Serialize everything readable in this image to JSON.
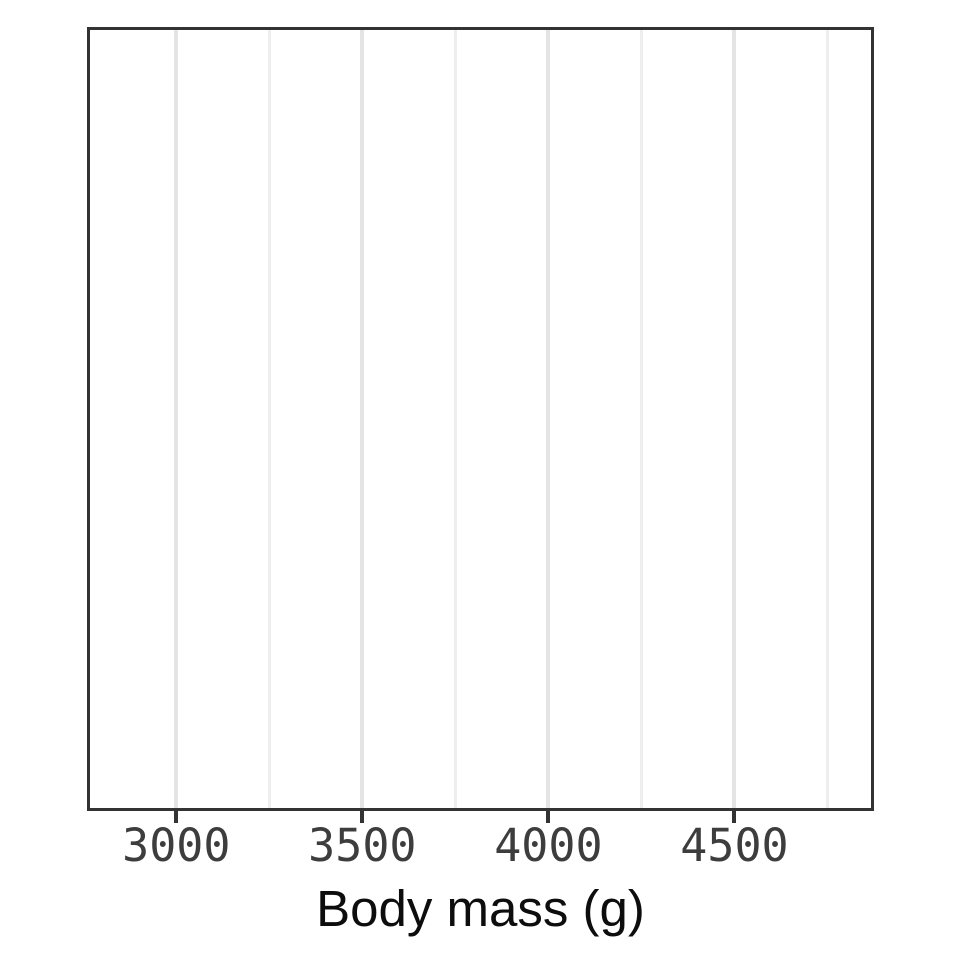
{
  "chart_data": {
    "type": "scatter",
    "title": "",
    "subtitle": "",
    "xlabel": "Body mass (g)",
    "ylabel": "",
    "xlim": [
      2760,
      4875
    ],
    "x_major_ticks": [
      3000,
      3500,
      4000,
      4500
    ],
    "x_major_tick_labels": [
      "3000",
      "3500",
      "4000",
      "4500"
    ],
    "x_minor_gridlines": [
      3250,
      3750,
      4250,
      4750
    ],
    "y_axis_shown": false,
    "grid": "vertical-only",
    "legend": "none",
    "panel_border": true,
    "series": [],
    "points": [],
    "note": "empty plot panel - no data geometry rendered",
    "colors": {
      "background": "#ffffff",
      "panel_background": "#ffffff",
      "panel_border": "#333333",
      "grid_major": "#e4e4e4",
      "grid_minor": "#eeeeee",
      "tick_mark": "#333333",
      "tick_label": "#3d3d3d",
      "axis_title": "#0d0d0d"
    }
  }
}
